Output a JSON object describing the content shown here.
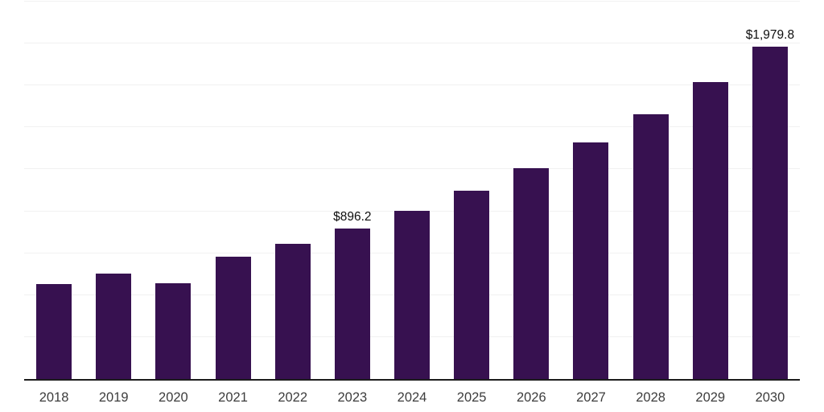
{
  "chart_data": {
    "type": "bar",
    "title": "",
    "xlabel": "",
    "ylabel": "",
    "categories": [
      "2018",
      "2019",
      "2020",
      "2021",
      "2022",
      "2023",
      "2024",
      "2025",
      "2026",
      "2027",
      "2028",
      "2029",
      "2030"
    ],
    "values": [
      566,
      630,
      569,
      731,
      808,
      896.2,
      1004,
      1124,
      1259,
      1410,
      1579,
      1769,
      1979.8
    ],
    "value_labels": [
      "",
      "",
      "",
      "",
      "",
      "$896.2",
      "",
      "",
      "",
      "",
      "",
      "",
      "$1,979.8"
    ],
    "ylim": [
      0,
      2250
    ],
    "gridline_step": 250,
    "grid": "horizontal-only",
    "legend": "none",
    "colors": {
      "bar": "#371150",
      "gridline": "#f1f1f1",
      "axis_line": "#1c1c1c",
      "tick_label": "#3d3d3d",
      "value_label": "#0d0d0d",
      "background": "#ffffff"
    }
  }
}
